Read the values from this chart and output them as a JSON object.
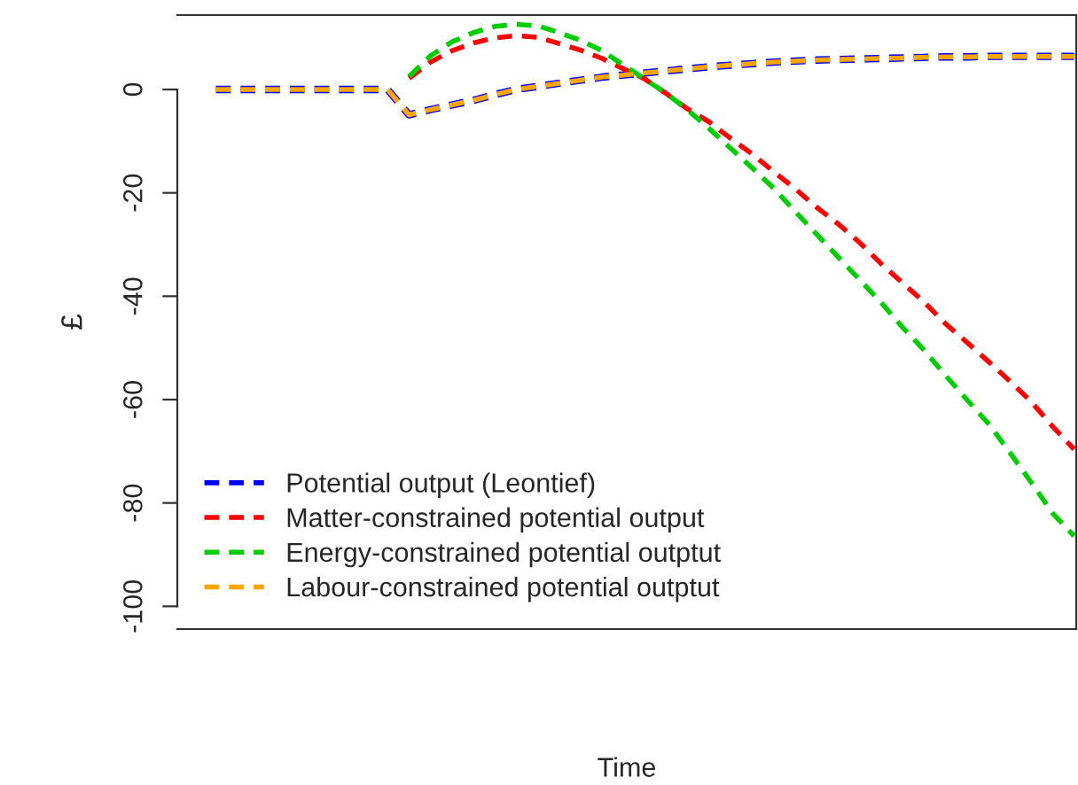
{
  "chart_data": {
    "type": "line",
    "xlabel": "Time",
    "ylabel": "£",
    "categories": [
      null,
      null,
      null,
      null,
      null,
      null,
      null,
      null,
      null,
      null,
      null,
      null,
      null,
      null,
      null,
      null,
      null,
      null,
      null,
      null,
      null,
      null,
      null,
      null,
      null,
      null,
      null,
      null,
      null,
      null,
      null,
      null,
      null,
      null,
      null,
      null,
      null,
      null,
      null,
      null,
      null
    ],
    "series": [
      {
        "name": "Potential output (Leontief)",
        "color": "#0000ff",
        "values": [
          0,
          0,
          0,
          0,
          0,
          0,
          0,
          0,
          0,
          -4.9,
          -3.9,
          -3.0,
          -2.1,
          -1.0,
          0,
          0.6,
          1.2,
          1.8,
          2.4,
          2.8,
          3.2,
          3.6,
          4.0,
          4.4,
          4.7,
          5.0,
          5.3,
          5.5,
          5.7,
          5.8,
          5.9,
          6.0,
          6.1,
          6.2,
          6.3,
          6.3,
          6.4,
          6.4,
          6.4,
          6.4,
          6.4
        ]
      },
      {
        "name": "Matter-constrained potential output",
        "color": "#ff0000",
        "values": [
          null,
          null,
          null,
          null,
          null,
          null,
          null,
          null,
          null,
          2.2,
          5.3,
          7.5,
          9.0,
          10.0,
          10.4,
          10.1,
          8.9,
          7.6,
          6.0,
          4.0,
          2.0,
          -0.8,
          -3.8,
          -6.3,
          -9.5,
          -12.5,
          -15.9,
          -19.2,
          -22.8,
          -26.0,
          -29.6,
          -33.7,
          -37.4,
          -41.1,
          -45.3,
          -48.9,
          -52.6,
          -56.4,
          -60.4,
          -65.2,
          -69.6
        ]
      },
      {
        "name": "Energy-constrained potential outptut",
        "color": "#00cd00",
        "values": [
          null,
          null,
          null,
          null,
          null,
          null,
          null,
          null,
          null,
          2.5,
          6.5,
          9.2,
          11.0,
          12.2,
          12.6,
          12.3,
          11.0,
          9.5,
          7.5,
          4.7,
          2.0,
          -0.8,
          -4.0,
          -7.6,
          -11.4,
          -15.2,
          -19.1,
          -23.6,
          -28.0,
          -32.4,
          -36.8,
          -41.2,
          -46.0,
          -50.4,
          -55.3,
          -60.0,
          -64.6,
          -70.2,
          -76.0,
          -82.0,
          -86.4
        ]
      },
      {
        "name": "Labour-constrained potential outptut",
        "color": "#ffa500",
        "values": [
          0,
          0,
          0,
          0,
          0,
          0,
          0,
          0,
          0,
          -4.9,
          -3.9,
          -3.0,
          -2.1,
          -1.0,
          0,
          0.6,
          1.2,
          1.8,
          2.4,
          2.8,
          3.2,
          3.6,
          4.0,
          4.4,
          4.7,
          5.0,
          5.3,
          5.5,
          5.7,
          5.8,
          5.9,
          6.0,
          6.1,
          6.2,
          6.3,
          6.3,
          6.4,
          6.4,
          6.4,
          6.4,
          6.4
        ]
      }
    ],
    "ylim": [
      -104.4,
      14.4
    ],
    "yticks": [
      0,
      -20,
      -40,
      -60,
      -80,
      -100
    ],
    "tick_labels": "y",
    "grid": false,
    "legend": "bottom left",
    "line_style": "dashed",
    "marker": "none"
  }
}
